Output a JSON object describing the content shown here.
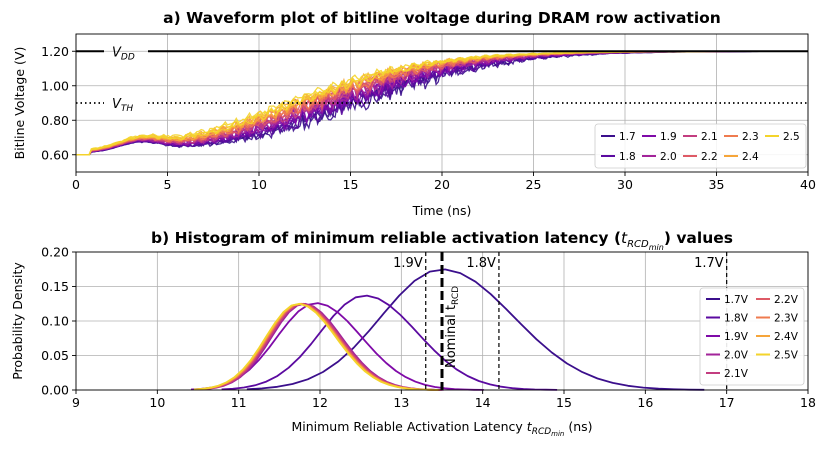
{
  "chart_data": [
    {
      "type": "line",
      "title": "a) Waveform plot of bitline voltage during DRAM row activation",
      "xlabel": "Time (ns)",
      "ylabel": "Bitline Voltage (V)",
      "xlim": [
        0,
        40
      ],
      "ylim": [
        0.5,
        1.3
      ],
      "xticks": [
        "0",
        "5",
        "10",
        "15",
        "20",
        "25",
        "30",
        "35",
        "40"
      ],
      "yticks": [
        "0.60",
        "0.80",
        "1.00",
        "1.20"
      ],
      "grid": true,
      "legend_position": "bottom-right",
      "reference_lines": [
        {
          "label": "V_DD",
          "label_main": "V",
          "label_sub": "DD",
          "y": 1.2,
          "style": "solid"
        },
        {
          "label": "V_TH",
          "label_main": "V",
          "label_sub": "TH",
          "y": 0.9,
          "style": "dotted"
        }
      ],
      "series": [
        {
          "name": "1.7",
          "color": "#3b0f8c",
          "t_mid": 14.2,
          "width": 3.6,
          "noise": 0.06
        },
        {
          "name": "1.8",
          "color": "#5b0aa0",
          "t_mid": 13.8,
          "width": 3.6,
          "noise": 0.055
        },
        {
          "name": "1.9",
          "color": "#7f0aa8",
          "t_mid": 13.3,
          "width": 3.6,
          "noise": 0.05
        },
        {
          "name": "2.0",
          "color": "#a3249a",
          "t_mid": 12.9,
          "width": 3.6,
          "noise": 0.045
        },
        {
          "name": "2.1",
          "color": "#c33d80",
          "t_mid": 12.6,
          "width": 3.6,
          "noise": 0.04
        },
        {
          "name": "2.2",
          "color": "#de5a66",
          "t_mid": 12.3,
          "width": 3.6,
          "noise": 0.036
        },
        {
          "name": "2.3",
          "color": "#ef7b4f",
          "t_mid": 12.0,
          "width": 3.6,
          "noise": 0.032
        },
        {
          "name": "2.4",
          "color": "#f6a53a",
          "t_mid": 11.7,
          "width": 3.6,
          "noise": 0.028
        },
        {
          "name": "2.5",
          "color": "#f4d42b",
          "t_mid": 11.4,
          "width": 3.6,
          "noise": 0.025
        }
      ]
    },
    {
      "type": "line",
      "title": "b) Histogram of minimum reliable activation latency",
      "title_math": {
        "main": "t",
        "sub": "RCD",
        "subsub": "min"
      },
      "title_suffix": "values",
      "xlabel": "Minimum Reliable Activation Latency",
      "xlabel_math": {
        "main": "t",
        "sub": "RCD",
        "subsub": "min"
      },
      "xlabel_suffix": "(ns)",
      "ylabel": "Probability Density",
      "xlim": [
        9,
        18
      ],
      "ylim": [
        0,
        0.2
      ],
      "xticks": [
        "9",
        "10",
        "11",
        "12",
        "13",
        "14",
        "15",
        "16",
        "17",
        "18"
      ],
      "yticks": [
        "0.00",
        "0.05",
        "0.10",
        "0.15",
        "0.20"
      ],
      "grid": true,
      "legend_position": "right",
      "vertical_markers": [
        {
          "label": "1.9V",
          "x": 13.3
        },
        {
          "label": "1.8V",
          "x": 14.2
        },
        {
          "label": "1.7V",
          "x": 17.0
        }
      ],
      "nominal_marker": {
        "x": 13.5,
        "label_main": "Nominal t",
        "label_sub": "RCD"
      },
      "series": [
        {
          "name": "1.7V",
          "color": "#3b0f8c",
          "mean": 13.5,
          "sd": 0.75,
          "peak": 0.175
        },
        {
          "name": "1.8V",
          "color": "#5b0aa0",
          "mean": 12.55,
          "sd": 0.55,
          "peak": 0.137
        },
        {
          "name": "1.9V",
          "color": "#7f0aa8",
          "mean": 11.95,
          "sd": 0.48,
          "peak": 0.126
        },
        {
          "name": "2.0V",
          "color": "#a3249a",
          "mean": 11.8,
          "sd": 0.4,
          "peak": 0.125
        },
        {
          "name": "2.1V",
          "color": "#c33d80",
          "mean": 11.78,
          "sd": 0.4,
          "peak": 0.125
        },
        {
          "name": "2.2V",
          "color": "#de5a66",
          "mean": 11.76,
          "sd": 0.4,
          "peak": 0.125
        },
        {
          "name": "2.3V",
          "color": "#ef7b4f",
          "mean": 11.75,
          "sd": 0.4,
          "peak": 0.125
        },
        {
          "name": "2.4V",
          "color": "#f6a53a",
          "mean": 11.74,
          "sd": 0.4,
          "peak": 0.125
        },
        {
          "name": "2.5V",
          "color": "#f4d42b",
          "mean": 11.73,
          "sd": 0.4,
          "peak": 0.125
        }
      ]
    }
  ]
}
